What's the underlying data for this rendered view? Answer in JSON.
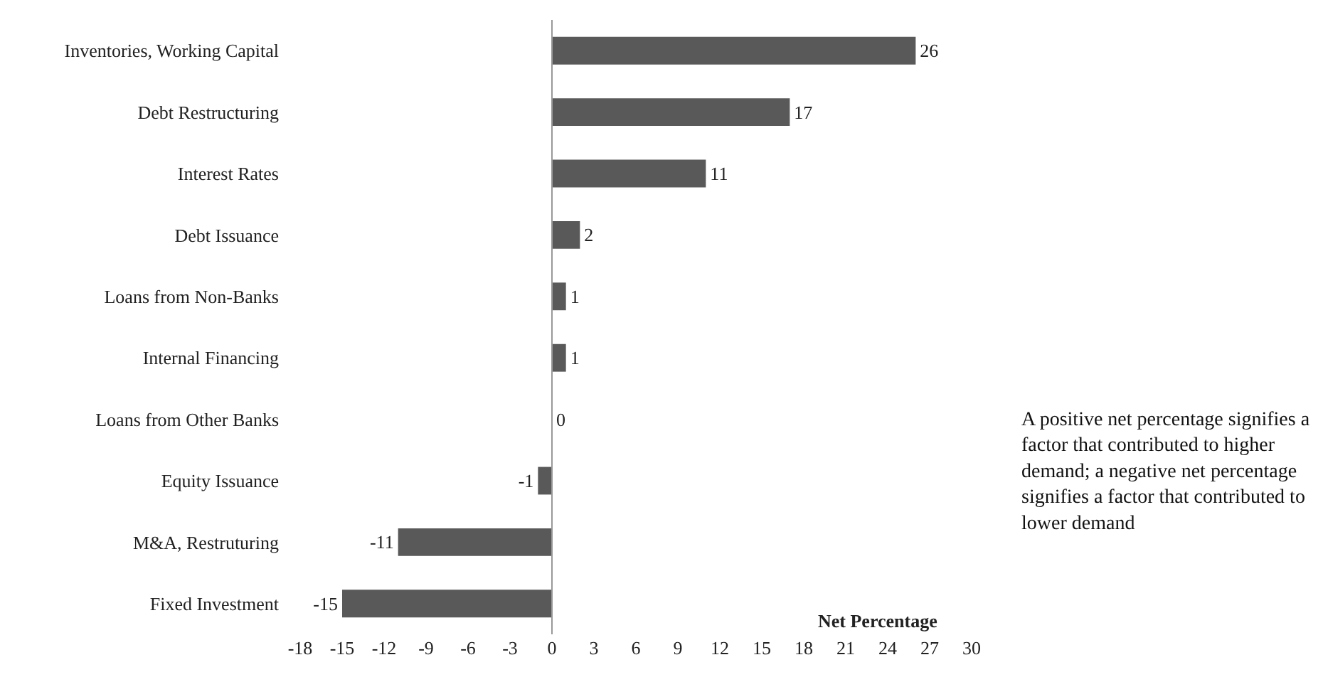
{
  "chart_data": {
    "type": "bar",
    "orientation": "horizontal",
    "categories": [
      "Inventories, Working Capital",
      "Debt Restructuring",
      "Interest Rates",
      "Debt Issuance",
      "Loans from Non-Banks",
      "Internal Financing",
      "Loans from Other Banks",
      "Equity Issuance",
      "M&A, Restruturing",
      "Fixed Investment"
    ],
    "values": [
      26,
      17,
      11,
      2,
      1,
      1,
      0,
      -1,
      -11,
      -15
    ],
    "color": "#595959",
    "xlim": [
      -18,
      30
    ],
    "xticks": [
      -18,
      -15,
      -12,
      -9,
      -6,
      -3,
      0,
      3,
      6,
      9,
      12,
      15,
      18,
      21,
      24,
      27,
      30
    ],
    "xlabel": "Net Percentage",
    "data_labels": true,
    "grid": false,
    "ref_lines": [
      {
        "axis": "x",
        "value": 0,
        "color": "#999999"
      }
    ],
    "annotations": [
      "A positive net percentage signifies a factor that contributed to higher demand; a negative net percentage signifies a factor that contributed to lower demand"
    ]
  }
}
